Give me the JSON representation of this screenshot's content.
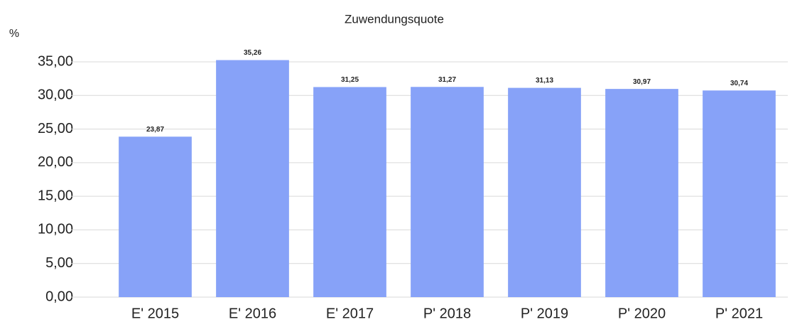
{
  "chart_data": {
    "type": "bar",
    "title": "Zuwendungsquote",
    "y_label": "%",
    "categories": [
      "E' 2015",
      "E' 2016",
      "E' 2017",
      "P' 2018",
      "P' 2019",
      "P' 2020",
      "P' 2021"
    ],
    "values": [
      23.87,
      35.26,
      31.25,
      31.27,
      31.13,
      30.97,
      30.74
    ],
    "value_labels": [
      "23,87",
      "35,26",
      "31,25",
      "31,27",
      "31,13",
      "30,97",
      "30,74"
    ],
    "color": "#87a2f8",
    "ylim": [
      0,
      35
    ],
    "yticks": [
      {
        "value": 0,
        "label": "0,00"
      },
      {
        "value": 5,
        "label": "5,00"
      },
      {
        "value": 10,
        "label": "10,00"
      },
      {
        "value": 15,
        "label": "15,00"
      },
      {
        "value": 20,
        "label": "20,00"
      },
      {
        "value": 25,
        "label": "25,00"
      },
      {
        "value": 30,
        "label": "30,00"
      },
      {
        "value": 35,
        "label": "35,00"
      }
    ],
    "grid": true
  }
}
